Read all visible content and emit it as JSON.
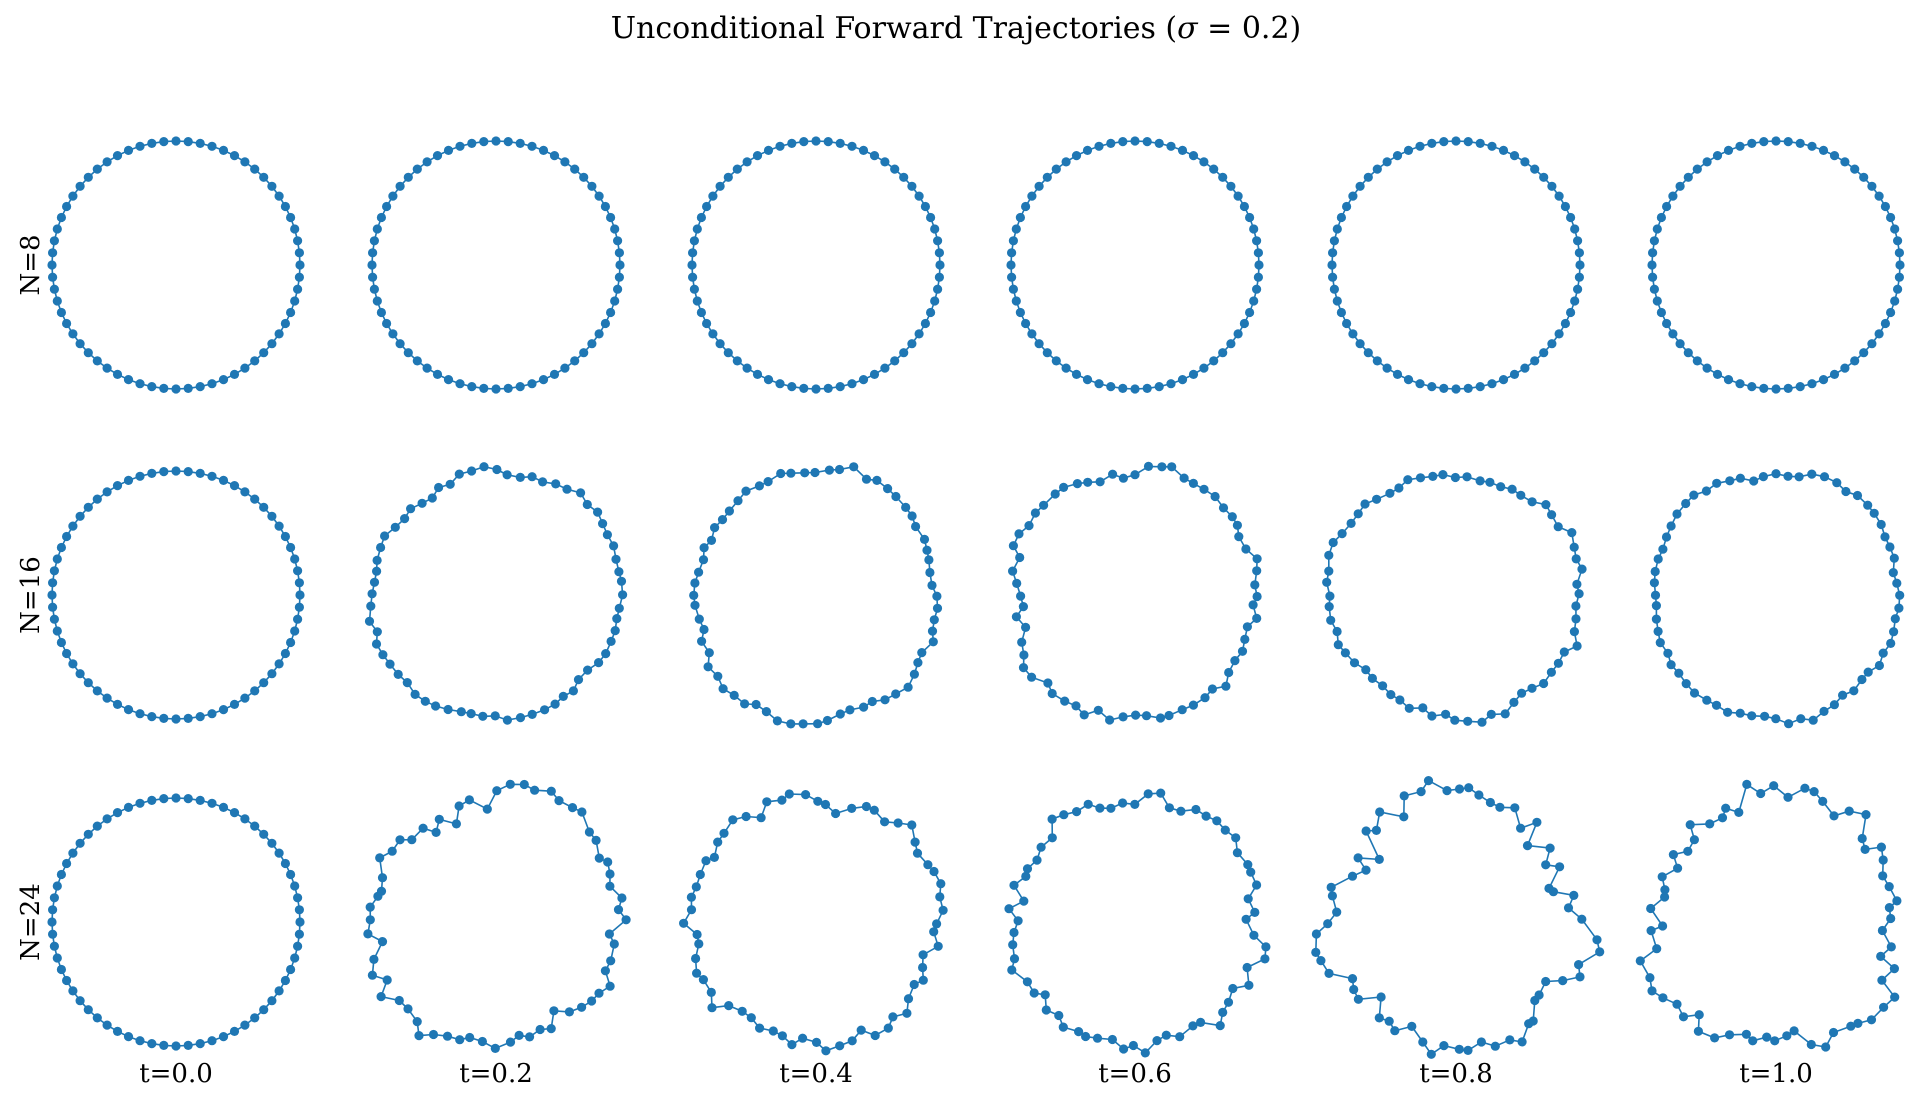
{
  "figure": {
    "title_prefix": "Unconditional Forward Trajectories (",
    "title_symbol": "σ",
    "title_suffix": " = 0.2)"
  },
  "chart_data": {
    "type": "scatter",
    "title": "Unconditional Forward Trajectories (σ = 0.2)",
    "sigma": 0.2,
    "axes_visible": false,
    "grid": false,
    "points_per_curve": 64,
    "connected": true,
    "closed": true,
    "marker": "circle",
    "color": "#1f77b4",
    "rows": [
      {
        "label": "N=8",
        "N": 8
      },
      {
        "label": "N=16",
        "N": 16
      },
      {
        "label": "N=24",
        "N": 24
      }
    ],
    "columns": [
      {
        "label": "t=0.0",
        "t": 0.0
      },
      {
        "label": "t=0.2",
        "t": 0.2
      },
      {
        "label": "t=0.4",
        "t": 0.4
      },
      {
        "label": "t=0.6",
        "t": 0.6
      },
      {
        "label": "t=0.8",
        "t": 0.8
      },
      {
        "label": "t=1.0",
        "t": 1.0
      }
    ],
    "radius": 1.0,
    "noise_model": "radial fourier perturbation, amplitude increasing with t and N",
    "amplitudes": [
      [
        0.0,
        0.0,
        0.0,
        0.0,
        0.0,
        0.0
      ],
      [
        0.0,
        0.07,
        0.1,
        0.11,
        0.08,
        0.06
      ],
      [
        0.0,
        0.18,
        0.14,
        0.16,
        0.24,
        0.22
      ]
    ],
    "xlim": [
      -1.2,
      1.2
    ],
    "ylim": [
      -1.2,
      1.2
    ]
  }
}
